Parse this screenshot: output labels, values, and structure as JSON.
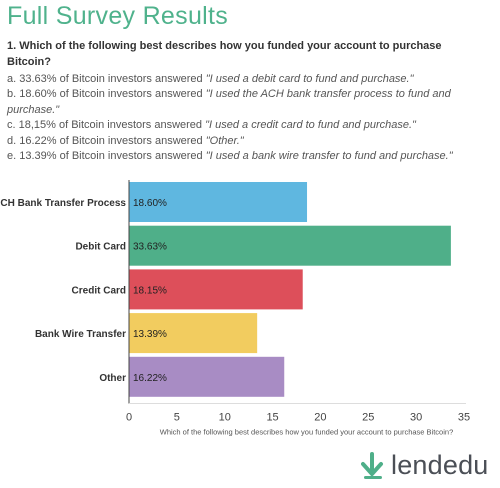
{
  "header": {
    "title": "Full Survey Results"
  },
  "question": "1. Which of the following best describes how you funded your account to purchase Bitcoin?",
  "answers": [
    {
      "prefix": "a. 33.63% of Bitcoin investors answered ",
      "quote": "\"I used a debit card to fund and purchase.\""
    },
    {
      "prefix": "b. 18.60% of Bitcoin investors answered ",
      "quote": "\"I used the ACH bank transfer process to fund and purchase.\""
    },
    {
      "prefix": "c. 18,15% of Bitcoin investors answered ",
      "quote": "\"I used a credit card to fund and purchase.\""
    },
    {
      "prefix": "d. 16.22% of Bitcoin investors answered ",
      "quote": "\"Other.\""
    },
    {
      "prefix": "e. 13.39% of Bitcoin investors answered ",
      "quote": "\"I used a bank wire transfer to fund and purchase.\""
    }
  ],
  "chart_data": {
    "type": "bar",
    "orientation": "horizontal",
    "categories": [
      "ACH Bank Transfer Process",
      "Debit Card",
      "Credit Card",
      "Bank Wire Transfer",
      "Other"
    ],
    "values": [
      18.6,
      33.63,
      18.15,
      13.39,
      16.22
    ],
    "value_labels": [
      "18.60%",
      "33.63%",
      "18.15%",
      "13.39%",
      "16.22%"
    ],
    "colors": [
      "#5fb7e0",
      "#4faf89",
      "#dd4f5a",
      "#f2cc5f",
      "#a88cc4"
    ],
    "xlabel": "Which of the following best describes how you funded your account to purchase Bitcoin?",
    "xlim": [
      0,
      35
    ],
    "xticks": [
      "0",
      "5",
      "10",
      "15",
      "20",
      "25",
      "30",
      "35"
    ],
    "grid": false
  },
  "logo": {
    "text": "lendedu",
    "icon": "lendedu-logo-icon",
    "color": "#4faf89"
  }
}
